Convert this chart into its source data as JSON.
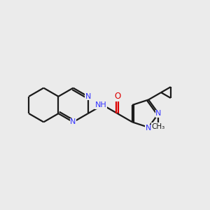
{
  "bg_color": "#ebebeb",
  "bond_color": "#1a1a1a",
  "N_color": "#3333ff",
  "O_color": "#dd0000",
  "lw": 1.6,
  "dbo": 0.055,
  "xlim": [
    0,
    10
  ],
  "ylim": [
    2.5,
    8.5
  ],
  "figsize": [
    3.0,
    3.0
  ],
  "dpi": 100
}
